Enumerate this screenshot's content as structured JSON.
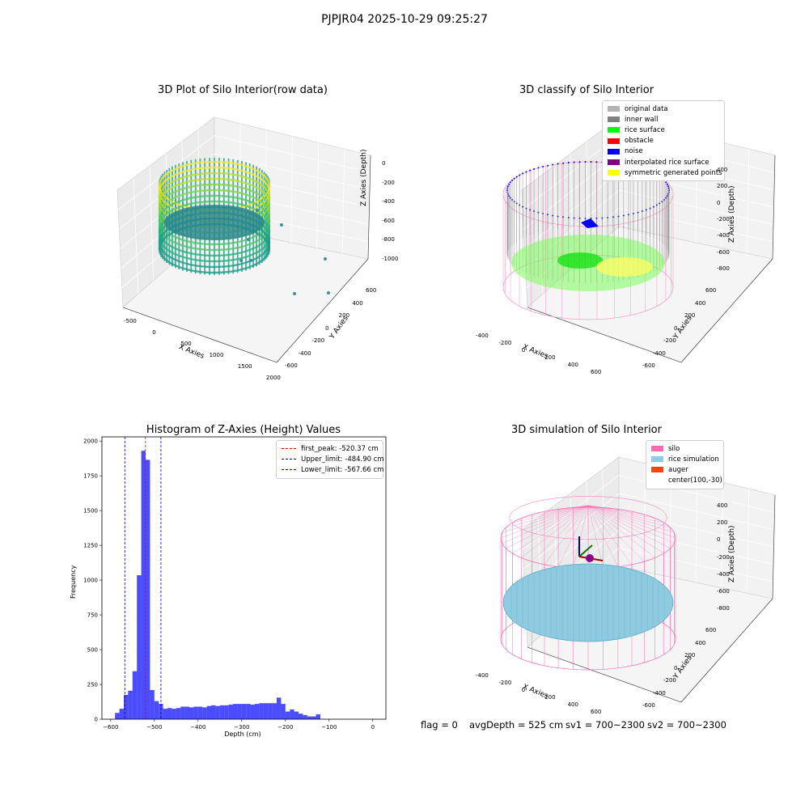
{
  "suptitle": "PJPJR04 2025-10-29 09:25:27",
  "panels": {
    "raw": {
      "title": "3D Plot of Silo Interior(row data)",
      "xlabel": "X Axies",
      "ylabel": "Y Axies",
      "zlabel": "Z Axies (Depth)",
      "xticks": [
        "-500",
        "0",
        "500",
        "1000",
        "1500",
        "2000"
      ],
      "yticks": [
        "600",
        "400",
        "200",
        "0",
        "-200",
        "-400",
        "-600"
      ],
      "zticks": [
        "0",
        "-200",
        "-400",
        "-600",
        "-800",
        "-1000"
      ]
    },
    "classify": {
      "title": "3D classify of Silo Interior",
      "xlabel": "X Axies",
      "ylabel": "Y Axies",
      "zlabel": "Z Axies (Depth)",
      "xticks": [
        "-400",
        "-200",
        "0",
        "200",
        "400",
        "600"
      ],
      "yticks": [
        "600",
        "400",
        "200",
        "0",
        "-200",
        "-400",
        "-600"
      ],
      "zticks": [
        "400",
        "200",
        "0",
        "-200",
        "-400",
        "-600",
        "-800"
      ],
      "legend": [
        {
          "label": "original data",
          "color": "#b3b3b3"
        },
        {
          "label": "inner wall",
          "color": "#808080"
        },
        {
          "label": "rice surface",
          "color": "#00ff00"
        },
        {
          "label": "obstacle",
          "color": "#ff0000"
        },
        {
          "label": "noise",
          "color": "#0000ff"
        },
        {
          "label": "interpolated rice surface",
          "color": "#800080"
        },
        {
          "label": "symmetric generated points",
          "color": "#ffff00"
        }
      ]
    },
    "simulation": {
      "title": "3D simulation of Silo Interior",
      "xlabel": "X Axies",
      "ylabel": "Y Axies",
      "zlabel": "Z Axies (Depth)",
      "xticks": [
        "-400",
        "-200",
        "0",
        "200",
        "400",
        "600"
      ],
      "yticks": [
        "600",
        "400",
        "200",
        "0",
        "-200",
        "-400",
        "-600"
      ],
      "zticks": [
        "400",
        "200",
        "0",
        "-200",
        "-400",
        "-600",
        "-800"
      ],
      "legend": [
        {
          "label": "silo",
          "color": "#ff69b4"
        },
        {
          "label": "rice simulation",
          "color": "#87ceeb"
        },
        {
          "label": "auger",
          "color": "#ff4500"
        },
        {
          "label": "center(100,-30)",
          "color": ""
        }
      ]
    }
  },
  "chart_data": {
    "type": "bar",
    "title": "Histogram of Z-Axies (Height) Values",
    "xlabel": "Depth (cm)",
    "ylabel": "Frequency",
    "xlim": [
      -620,
      30
    ],
    "ylim": [
      0,
      2030
    ],
    "xticks": [
      -600,
      -500,
      -400,
      -300,
      -200,
      -100,
      0
    ],
    "yticks": [
      0,
      250,
      500,
      750,
      1000,
      1250,
      1500,
      1750,
      2000
    ],
    "bar_color": "#0000ff",
    "bin_edges_start": -590,
    "bin_width": 10,
    "values": [
      45,
      75,
      175,
      205,
      345,
      1035,
      1930,
      1865,
      210,
      130,
      110,
      75,
      80,
      75,
      80,
      90,
      90,
      85,
      90,
      90,
      85,
      95,
      100,
      95,
      100,
      100,
      105,
      110,
      110,
      110,
      110,
      105,
      110,
      115,
      115,
      115,
      115,
      155,
      110,
      55,
      70,
      55,
      40,
      30,
      20,
      20,
      35
    ],
    "vlines": [
      {
        "label": "first_peak: -520.37 cm",
        "x": -520.37,
        "color": "#ff0000"
      },
      {
        "label": "Upper_limit: -484.90 cm",
        "x": -484.9,
        "color": "#0000cc"
      },
      {
        "label": "Lower_limit: -567.66 cm",
        "x": -567.66,
        "color": "#0000cc"
      }
    ]
  },
  "status": {
    "flag": "flag = 0",
    "avg": "avgDepth = 525 cm",
    "sv1": "sv1 = 700~2300",
    "sv2": "sv2 = 700~2300"
  }
}
